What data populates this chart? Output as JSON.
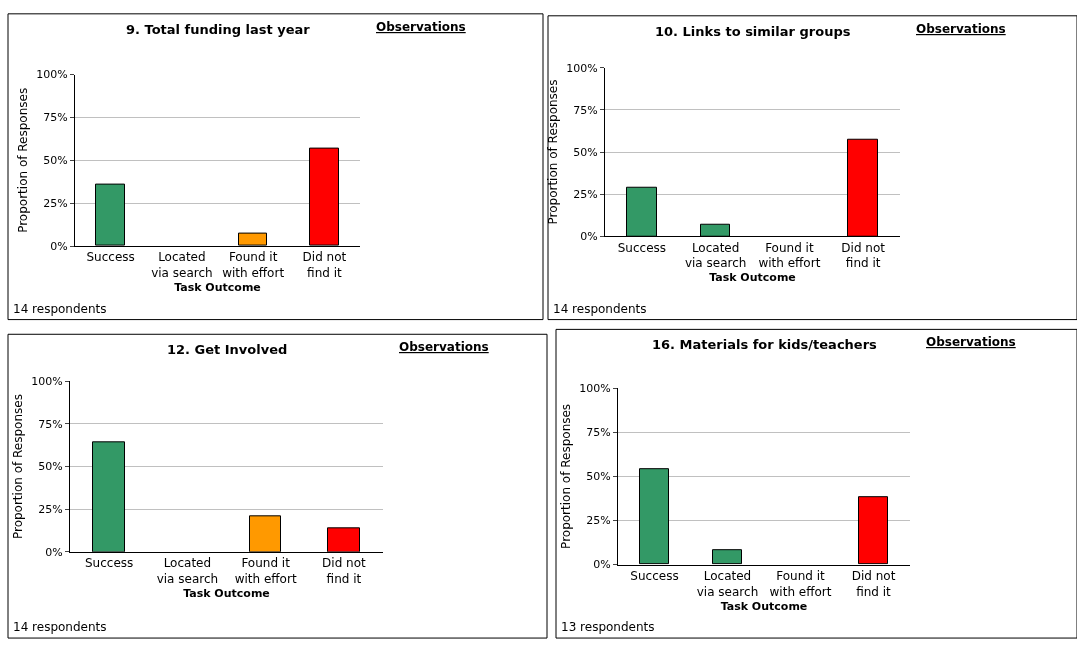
{
  "chart_data": [
    {
      "type": "bar",
      "title": "9. Total funding last year",
      "xlabel": "Task Outcome",
      "ylabel": "Proportion of Responses",
      "categories": [
        "Success",
        "Located\nvia search",
        "Found it\nwith effort",
        "Did not\nfind it"
      ],
      "values": [
        36,
        0,
        7,
        57
      ],
      "colors": [
        "#339966",
        "#339966",
        "#ff9900",
        "#ff0000"
      ],
      "ylim": [
        0,
        100
      ],
      "yticks": [
        {
          "value": 0,
          "label": "0%"
        },
        {
          "value": 25,
          "label": "25%"
        },
        {
          "value": 50,
          "label": "50%"
        },
        {
          "value": 75,
          "label": "75%"
        },
        {
          "value": 100,
          "label": "100%"
        }
      ],
      "grid": "y",
      "annotations": [
        "Observations",
        "14 respondents"
      ]
    },
    {
      "type": "bar",
      "title": "10. Links to similar groups",
      "xlabel": "Task Outcome",
      "ylabel": "Proportion of Responses",
      "categories": [
        "Success",
        "Located\nvia search",
        "Found it\nwith effort",
        "Did not\nfind it"
      ],
      "values": [
        29,
        7,
        0,
        57
      ],
      "colors": [
        "#339966",
        "#339966",
        "#ff9900",
        "#ff0000"
      ],
      "ylim": [
        0,
        100
      ],
      "yticks": [
        {
          "value": 0,
          "label": "0%"
        },
        {
          "value": 25,
          "label": "25%"
        },
        {
          "value": 50,
          "label": "50%"
        },
        {
          "value": 75,
          "label": "75%"
        },
        {
          "value": 100,
          "label": "100%"
        }
      ],
      "grid": "y",
      "annotations": [
        "Observations",
        "14 respondents"
      ]
    },
    {
      "type": "bar",
      "title": "12. Get Involved",
      "xlabel": "Task Outcome",
      "ylabel": "Proportion of Responses",
      "categories": [
        "Success",
        "Located\nvia search",
        "Found it\nwith effort",
        "Did not\nfind it"
      ],
      "values": [
        64,
        0,
        21,
        14
      ],
      "colors": [
        "#339966",
        "#339966",
        "#ff9900",
        "#ff0000"
      ],
      "ylim": [
        0,
        100
      ],
      "yticks": [
        {
          "value": 0,
          "label": "0%"
        },
        {
          "value": 25,
          "label": "25%"
        },
        {
          "value": 50,
          "label": "50%"
        },
        {
          "value": 75,
          "label": "75%"
        },
        {
          "value": 100,
          "label": "100%"
        }
      ],
      "grid": "y",
      "annotations": [
        "Observations",
        "14 respondents"
      ]
    },
    {
      "type": "bar",
      "title": "16. Materials for kids/teachers",
      "xlabel": "Task Outcome",
      "ylabel": "Proportion of Responses",
      "categories": [
        "Success",
        "Located\nvia search",
        "Found it\nwith effort",
        "Did not\nfind it"
      ],
      "values": [
        54,
        8,
        0,
        38
      ],
      "colors": [
        "#339966",
        "#339966",
        "#ff9900",
        "#ff0000"
      ],
      "ylim": [
        0,
        100
      ],
      "yticks": [
        {
          "value": 0,
          "label": "0%"
        },
        {
          "value": 25,
          "label": "25%"
        },
        {
          "value": 50,
          "label": "50%"
        },
        {
          "value": 75,
          "label": "75%"
        },
        {
          "value": 100,
          "label": "100%"
        }
      ],
      "grid": "y",
      "annotations": [
        "Observations",
        "13 respondents"
      ]
    }
  ]
}
